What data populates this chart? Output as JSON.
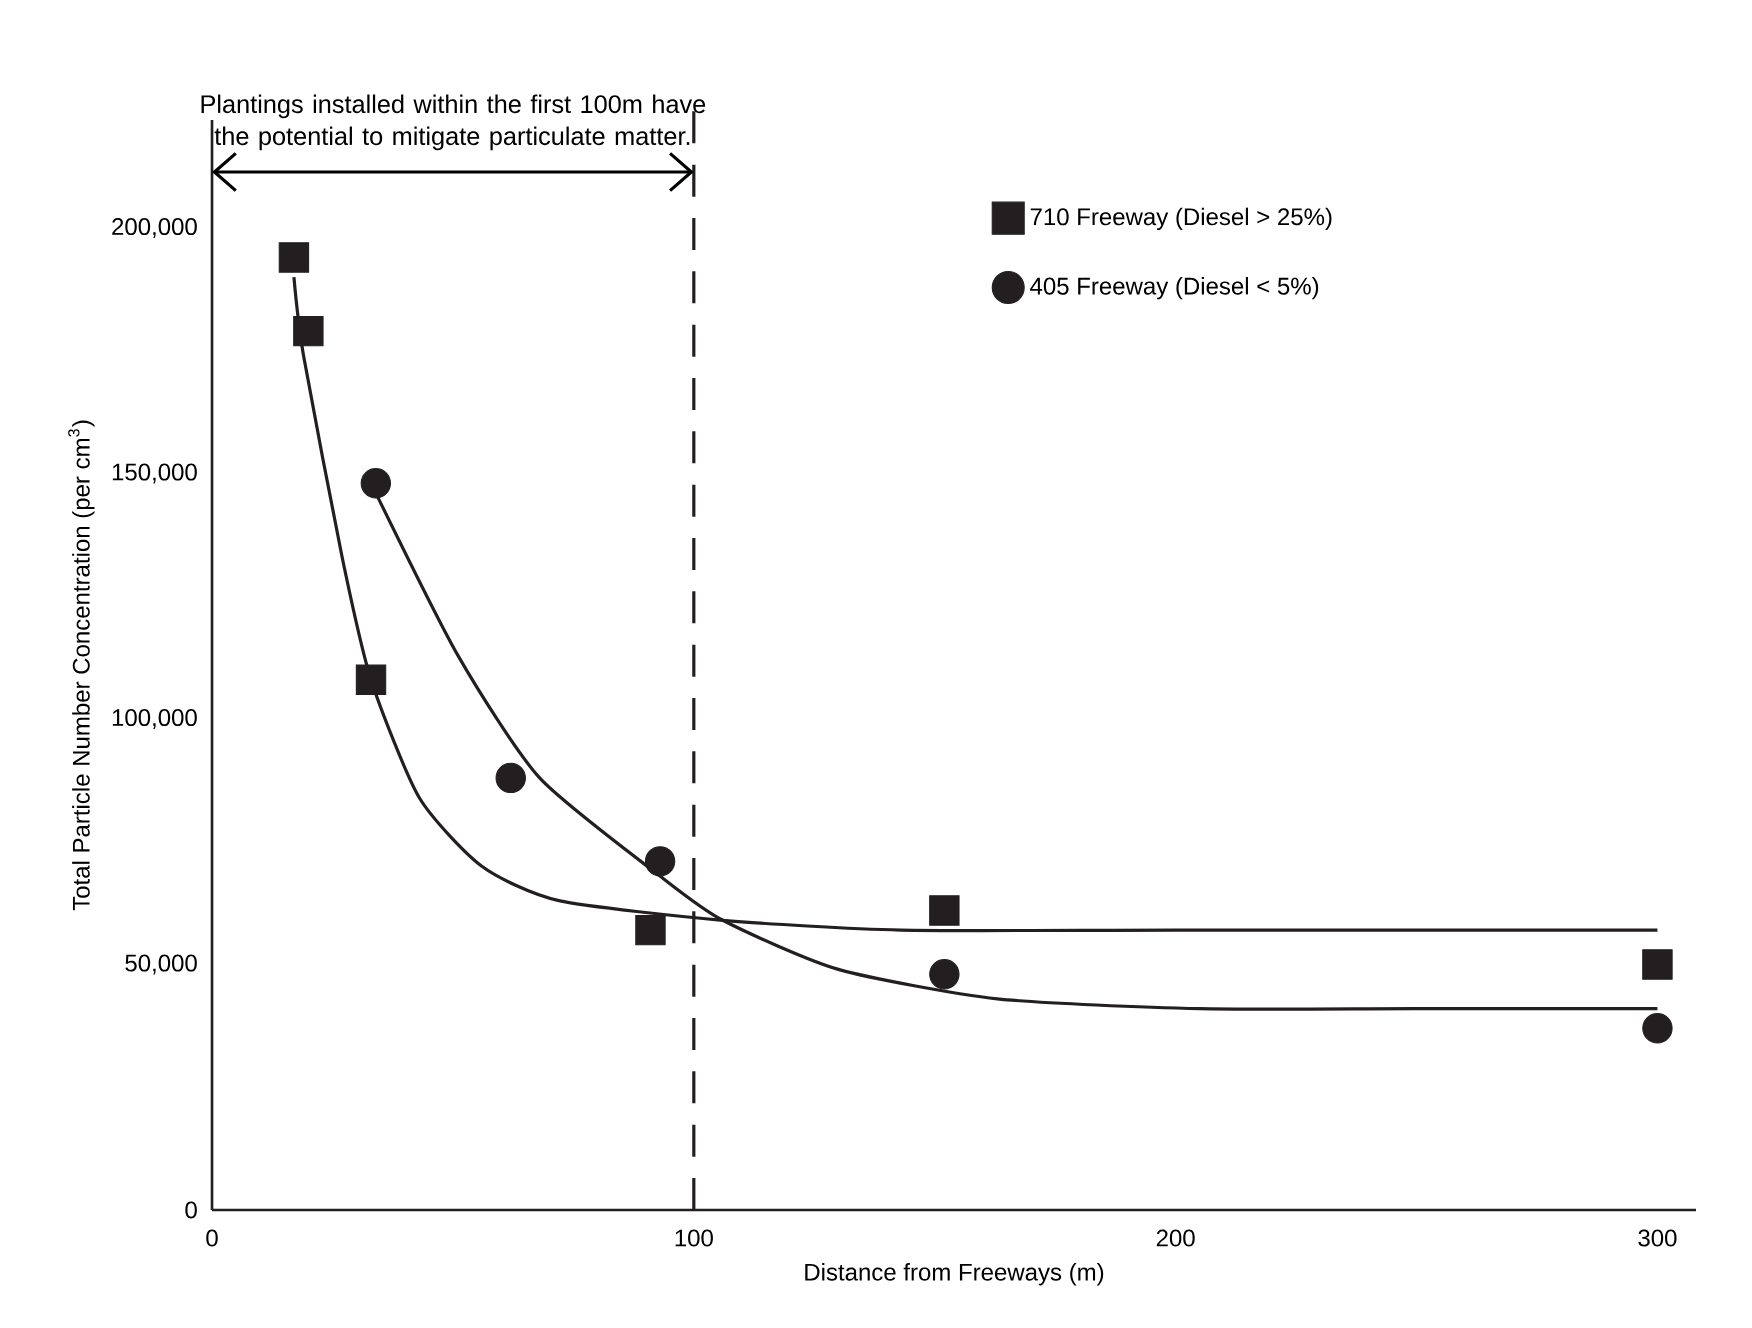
{
  "chart_data": {
    "type": "scatter",
    "xlabel": "Distance from Freeways (m)",
    "ylabel": "Total Particle Number Concentration (per cm$^{3}$)",
    "annotations": [
      "Plantings installed within the first 100m have the potential to mitigate particulate matter."
    ],
    "xlim": [
      0,
      308
    ],
    "ylim": [
      0,
      222000
    ],
    "xticks": [
      0,
      100,
      200,
      300
    ],
    "yticks": [
      {
        "value": 0,
        "label": "0"
      },
      {
        "value": 50000,
        "label": "50,000"
      },
      {
        "value": 100000,
        "label": "100,000"
      },
      {
        "value": 150000,
        "label": "150,000"
      },
      {
        "value": 200000,
        "label": "200,000"
      }
    ],
    "grid": false,
    "legend": "top right",
    "ref_lines": [
      {
        "axis": "x",
        "value": 100,
        "line_style": "dashed",
        "color": "#231f20"
      }
    ],
    "series": [
      {
        "name": "710 Freeway (Diesel > 25%)",
        "marker": "square",
        "color": "#231f20",
        "x": [
          17,
          20,
          33,
          91,
          152,
          300
        ],
        "values": [
          194000,
          179000,
          108000,
          57000,
          61000,
          50000
        ]
      },
      {
        "name": "405 Freeway (Diesel < 5%)",
        "marker": "circle",
        "color": "#231f20",
        "x": [
          34,
          62,
          93,
          152,
          300
        ],
        "values": [
          148000,
          88000,
          71000,
          48000,
          37000
        ]
      },
      {
        "type": "line",
        "marker": "none",
        "line_style": "solid",
        "color": "#231f20",
        "x": [
          17,
          19,
          27,
          33,
          43,
          56,
          72,
          106,
          143,
          200,
          300
        ],
        "values": [
          190000,
          174000,
          133000,
          108000,
          84000,
          70000,
          63000,
          59000,
          57000,
          57000,
          57000
        ]
      },
      {
        "type": "line",
        "marker": "none",
        "line_style": "solid",
        "color": "#231f20",
        "x": [
          34,
          51,
          68,
          93,
          106,
          130,
          163,
          205,
          250,
          300
        ],
        "values": [
          146000,
          113000,
          88000,
          68000,
          59000,
          49000,
          43000,
          41000,
          41000,
          41000
        ]
      }
    ]
  }
}
